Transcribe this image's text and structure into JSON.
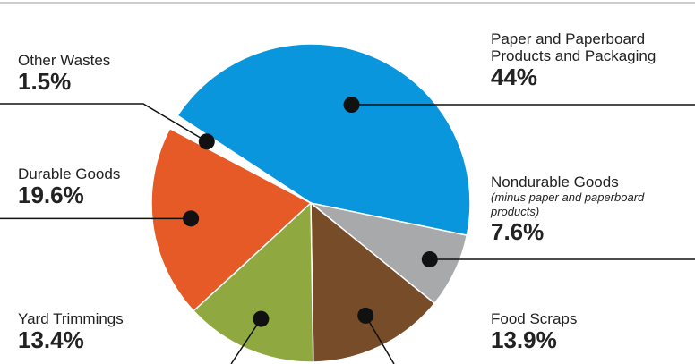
{
  "chart_data": {
    "type": "pie",
    "categories": [
      "Paper and Paperboard Products and Packaging",
      "Nondurable Goods",
      "Food Scraps",
      "Yard Trimmings",
      "Durable Goods",
      "Other Wastes"
    ],
    "values": [
      44,
      7.6,
      13.9,
      13.4,
      19.6,
      1.5
    ],
    "value_labels": [
      "44%",
      "7.6%",
      "13.9%",
      "13.4%",
      "19.6%",
      "1.5%"
    ],
    "colors": [
      "#0a96dc",
      "#a8a9ab",
      "#774c28",
      "#8fa940",
      "#e55a26",
      "#ffffff"
    ],
    "annotations": [
      "(minus paper and paperboard products)"
    ]
  }
}
